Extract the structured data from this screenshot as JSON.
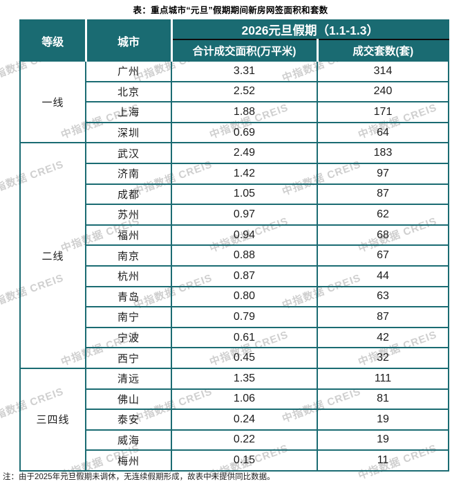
{
  "page": {
    "title": "表：重点城市“元旦”假期期间新房网签面积和套数",
    "note": "注：由于2025年元旦假期未调休，无连续假期形成，故表中未提供同比数据。",
    "watermark_text": "中指数据 CREIS"
  },
  "colors": {
    "header_teal": "#1A6B72",
    "border_teal": "#1A6B72",
    "header_divider_white": "#FFFFFF",
    "header_divider_dark": "#0D0D0D",
    "watermark_gray": "#A8A8A8",
    "text_dark": "#1B1B1B"
  },
  "chart_data": {
    "type": "table",
    "title": "表：重点城市“元旦”假期期间新房网签面积和套数",
    "header": {
      "tier": "等级",
      "city": "城市",
      "period": "2026元旦假期（1.1-1.3）",
      "area": "合计成交面积(万平米)",
      "units": "成交套数(套)"
    },
    "groups": [
      {
        "tier": "一线",
        "rows": [
          {
            "city": "广州",
            "area": "3.31",
            "units": "314"
          },
          {
            "city": "北京",
            "area": "2.52",
            "units": "240"
          },
          {
            "city": "上海",
            "area": "1.88",
            "units": "171"
          },
          {
            "city": "深圳",
            "area": "0.69",
            "units": "64"
          }
        ]
      },
      {
        "tier": "二线",
        "rows": [
          {
            "city": "武汉",
            "area": "2.49",
            "units": "183"
          },
          {
            "city": "济南",
            "area": "1.42",
            "units": "97"
          },
          {
            "city": "成都",
            "area": "1.05",
            "units": "87"
          },
          {
            "city": "苏州",
            "area": "0.97",
            "units": "62"
          },
          {
            "city": "福州",
            "area": "0.94",
            "units": "68"
          },
          {
            "city": "南京",
            "area": "0.88",
            "units": "67"
          },
          {
            "city": "杭州",
            "area": "0.87",
            "units": "44"
          },
          {
            "city": "青岛",
            "area": "0.80",
            "units": "63"
          },
          {
            "city": "南宁",
            "area": "0.79",
            "units": "87"
          },
          {
            "city": "宁波",
            "area": "0.61",
            "units": "42"
          },
          {
            "city": "西宁",
            "area": "0.45",
            "units": "32"
          }
        ]
      },
      {
        "tier": "三四线",
        "rows": [
          {
            "city": "清远",
            "area": "1.35",
            "units": "111"
          },
          {
            "city": "佛山",
            "area": "1.06",
            "units": "81"
          },
          {
            "city": "泰安",
            "area": "0.24",
            "units": "19"
          },
          {
            "city": "威海",
            "area": "0.22",
            "units": "19"
          },
          {
            "city": "梅州",
            "area": "0.15",
            "units": "11"
          }
        ]
      }
    ]
  }
}
